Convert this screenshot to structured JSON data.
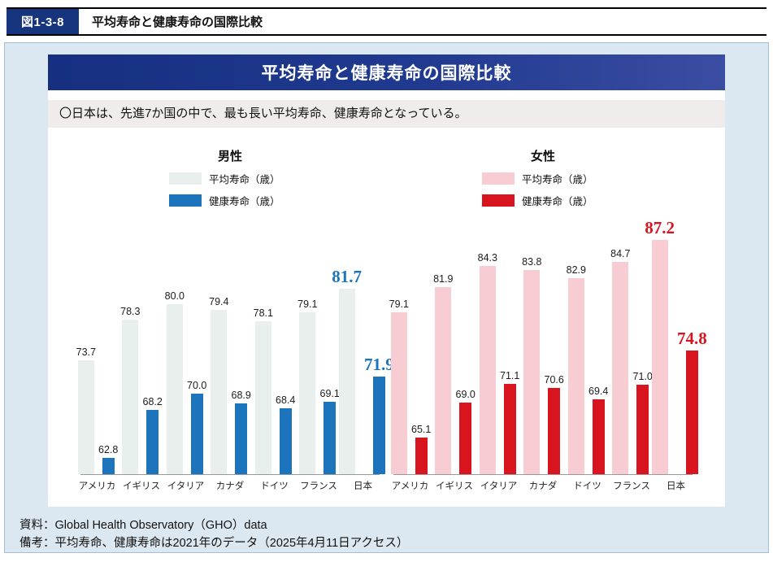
{
  "figure_header": {
    "label": "図1-3-8",
    "title": "平均寿命と健康寿命の国際比較"
  },
  "card": {
    "banner_title": "平均寿命と健康寿命の国際比較",
    "summary": "〇日本は、先進7か国の中で、最も長い平均寿命、健康寿命となっている。"
  },
  "notes": {
    "source": "資料：Global Health Observatory（GHO）data",
    "remark": "備考：平均寿命、健康寿命は2021年のデータ（2025年4月11日アクセス）"
  },
  "colors": {
    "male_average": "#e9efec",
    "male_healthy": "#1b74bc",
    "female_average": "#f8ccd3",
    "female_healthy": "#d8141f",
    "banner_navy": "#162f80",
    "panel_blue": "#dce8f1"
  },
  "chart_data": [
    {
      "type": "bar",
      "title": "男性",
      "categories": [
        "アメリカ",
        "イギリス",
        "イタリア",
        "カナダ",
        "ドイツ",
        "フランス",
        "日本"
      ],
      "series": [
        {
          "name": "平均寿命（歳）",
          "color": "#e9efec",
          "values": [
            73.7,
            78.3,
            80.0,
            79.4,
            78.1,
            79.1,
            81.7
          ]
        },
        {
          "name": "健康寿命（歳）",
          "color": "#1b74bc",
          "values": [
            62.8,
            68.2,
            70.0,
            68.9,
            68.4,
            69.1,
            71.9
          ]
        }
      ],
      "highlight_index": 6,
      "highlight_color": "#1b74bc",
      "ylim": [
        61,
        90
      ],
      "grid": false,
      "legend_position": "top"
    },
    {
      "type": "bar",
      "title": "女性",
      "categories": [
        "アメリカ",
        "イギリス",
        "イタリア",
        "カナダ",
        "ドイツ",
        "フランス",
        "日本"
      ],
      "series": [
        {
          "name": "平均寿命（歳）",
          "color": "#f8ccd3",
          "values": [
            79.1,
            81.9,
            84.3,
            83.8,
            82.9,
            84.7,
            87.2
          ]
        },
        {
          "name": "健康寿命（歳）",
          "color": "#d8141f",
          "values": [
            65.1,
            69.0,
            71.1,
            70.6,
            69.4,
            71.0,
            74.8
          ]
        }
      ],
      "highlight_index": 6,
      "highlight_color": "#d8141f",
      "ylim": [
        61,
        90
      ],
      "grid": false,
      "legend_position": "top"
    }
  ]
}
